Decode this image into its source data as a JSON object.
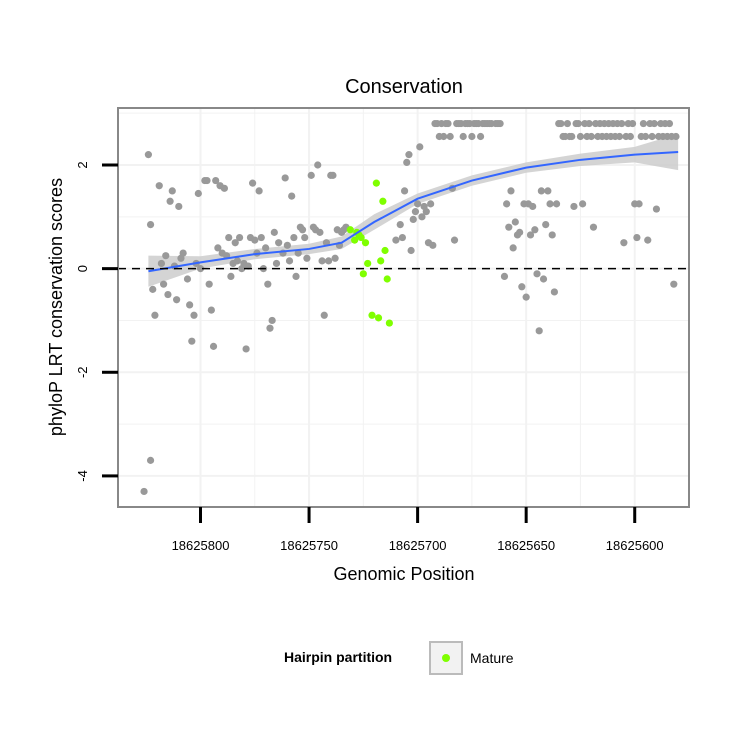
{
  "chart_data": {
    "type": "scatter",
    "title": "Conservation",
    "xlabel": "Genomic Position",
    "ylabel": "phyloP LRT conservation scores",
    "x_reversed": true,
    "xlim": [
      18625838,
      18625575
    ],
    "ylim": [
      -4.6,
      3.1
    ],
    "x_ticks": [
      18625800,
      18625750,
      18625700,
      18625650,
      18625600
    ],
    "y_ticks": [
      -4,
      -2,
      0,
      2
    ],
    "grid": true,
    "reference_line_y": 0,
    "legend": {
      "title": "Hairpin partition",
      "entries": [
        "Mature"
      ],
      "position": "bottom"
    },
    "colors": {
      "other": "#999999",
      "mature": "#7fff00",
      "smooth": "#3366ff",
      "ribbon": "#cccccc",
      "panel_border": "#888888",
      "grid": "#f2f2f2"
    },
    "series": [
      {
        "group": "other",
        "points": [
          [
            18625824,
            2.2
          ],
          [
            18625823,
            0.85
          ],
          [
            18625822,
            -0.4
          ],
          [
            18625821,
            -0.9
          ],
          [
            18625819,
            1.6
          ],
          [
            18625818,
            0.1
          ],
          [
            18625817,
            -0.3
          ],
          [
            18625816,
            0.25
          ],
          [
            18625815,
            -0.5
          ],
          [
            18625814,
            1.3
          ],
          [
            18625813,
            1.5
          ],
          [
            18625812,
            0.05
          ],
          [
            18625811,
            -0.6
          ],
          [
            18625810,
            1.2
          ],
          [
            18625809,
            0.2
          ],
          [
            18625808,
            0.3
          ],
          [
            18625806,
            -0.2
          ],
          [
            18625805,
            -0.7
          ],
          [
            18625804,
            -1.4
          ],
          [
            18625803,
            -0.9
          ],
          [
            18625802,
            0.1
          ],
          [
            18625801,
            1.45
          ],
          [
            18625800,
            0.0
          ],
          [
            18625798,
            1.7
          ],
          [
            18625797,
            1.7
          ],
          [
            18625796,
            -0.3
          ],
          [
            18625795,
            -0.8
          ],
          [
            18625794,
            -1.5
          ],
          [
            18625793,
            1.7
          ],
          [
            18625792,
            0.4
          ],
          [
            18625791,
            1.6
          ],
          [
            18625790,
            0.3
          ],
          [
            18625789,
            1.55
          ],
          [
            18625788,
            0.25
          ],
          [
            18625787,
            0.6
          ],
          [
            18625786,
            -0.15
          ],
          [
            18625785,
            0.1
          ],
          [
            18625784,
            0.5
          ],
          [
            18625783,
            0.15
          ],
          [
            18625782,
            0.6
          ],
          [
            18625781,
            0.0
          ],
          [
            18625780,
            0.1
          ],
          [
            18625779,
            -1.55
          ],
          [
            18625778,
            0.05
          ],
          [
            18625777,
            0.6
          ],
          [
            18625776,
            1.65
          ],
          [
            18625775,
            0.55
          ],
          [
            18625774,
            0.3
          ],
          [
            18625773,
            1.5
          ],
          [
            18625772,
            0.6
          ],
          [
            18625771,
            0.0
          ],
          [
            18625770,
            0.4
          ],
          [
            18625769,
            -0.3
          ],
          [
            18625768,
            -1.15
          ],
          [
            18625767,
            -1.0
          ],
          [
            18625766,
            0.7
          ],
          [
            18625765,
            0.1
          ],
          [
            18625764,
            0.5
          ],
          [
            18625762,
            0.3
          ],
          [
            18625761,
            1.75
          ],
          [
            18625760,
            0.45
          ],
          [
            18625759,
            0.15
          ],
          [
            18625758,
            1.4
          ],
          [
            18625757,
            0.6
          ],
          [
            18625756,
            -0.15
          ],
          [
            18625755,
            0.3
          ],
          [
            18625754,
            0.8
          ],
          [
            18625753,
            0.75
          ],
          [
            18625752,
            0.6
          ],
          [
            18625751,
            0.2
          ],
          [
            18625749,
            1.8
          ],
          [
            18625748,
            0.8
          ],
          [
            18625747,
            0.75
          ],
          [
            18625746,
            2.0
          ],
          [
            18625745,
            0.7
          ],
          [
            18625744,
            0.15
          ],
          [
            18625743,
            -0.9
          ],
          [
            18625742,
            0.5
          ],
          [
            18625741,
            0.15
          ],
          [
            18625740,
            1.8
          ],
          [
            18625739,
            1.8
          ],
          [
            18625738,
            0.2
          ],
          [
            18625737,
            0.75
          ],
          [
            18625736,
            0.45
          ],
          [
            18625735,
            0.7
          ],
          [
            18625734,
            0.75
          ],
          [
            18625733,
            0.8
          ],
          [
            18625710,
            0.55
          ],
          [
            18625708,
            0.85
          ],
          [
            18625707,
            0.6
          ],
          [
            18625706,
            1.5
          ],
          [
            18625705,
            2.05
          ],
          [
            18625704,
            2.2
          ],
          [
            18625703,
            0.35
          ],
          [
            18625702,
            0.95
          ],
          [
            18625701,
            1.1
          ],
          [
            18625700,
            1.25
          ],
          [
            18625699,
            2.35
          ],
          [
            18625698,
            1.0
          ],
          [
            18625697,
            1.2
          ],
          [
            18625696,
            1.1
          ],
          [
            18625695,
            0.5
          ],
          [
            18625694,
            1.25
          ],
          [
            18625693,
            0.45
          ],
          [
            18625692,
            2.8
          ],
          [
            18625691,
            2.8
          ],
          [
            18625690,
            2.55
          ],
          [
            18625689,
            2.8
          ],
          [
            18625688,
            2.55
          ],
          [
            18625687,
            2.8
          ],
          [
            18625686,
            2.8
          ],
          [
            18625685,
            2.55
          ],
          [
            18625684,
            1.55
          ],
          [
            18625683,
            0.55
          ],
          [
            18625682,
            2.8
          ],
          [
            18625681,
            2.8
          ],
          [
            18625680,
            2.8
          ],
          [
            18625679,
            2.55
          ],
          [
            18625678,
            2.8
          ],
          [
            18625677,
            2.8
          ],
          [
            18625676,
            2.8
          ],
          [
            18625675,
            2.55
          ],
          [
            18625674,
            2.8
          ],
          [
            18625673,
            2.8
          ],
          [
            18625672,
            2.8
          ],
          [
            18625671,
            2.55
          ],
          [
            18625670,
            2.8
          ],
          [
            18625669,
            2.8
          ],
          [
            18625668,
            2.8
          ],
          [
            18625667,
            2.8
          ],
          [
            18625666,
            2.8
          ],
          [
            18625664,
            2.8
          ],
          [
            18625663,
            2.8
          ],
          [
            18625662,
            2.8
          ],
          [
            18625660,
            -0.15
          ],
          [
            18625659,
            1.25
          ],
          [
            18625658,
            0.8
          ],
          [
            18625657,
            1.5
          ],
          [
            18625656,
            0.4
          ],
          [
            18625655,
            0.9
          ],
          [
            18625654,
            0.65
          ],
          [
            18625653,
            0.7
          ],
          [
            18625652,
            -0.35
          ],
          [
            18625651,
            1.25
          ],
          [
            18625650,
            -0.55
          ],
          [
            18625649,
            1.25
          ],
          [
            18625648,
            0.65
          ],
          [
            18625647,
            1.2
          ],
          [
            18625646,
            0.75
          ],
          [
            18625645,
            -0.1
          ],
          [
            18625644,
            -1.2
          ],
          [
            18625643,
            1.5
          ],
          [
            18625642,
            -0.2
          ],
          [
            18625641,
            0.85
          ],
          [
            18625640,
            1.5
          ],
          [
            18625639,
            1.25
          ],
          [
            18625638,
            0.65
          ],
          [
            18625637,
            -0.45
          ],
          [
            18625636,
            1.25
          ],
          [
            18625635,
            2.8
          ],
          [
            18625634,
            2.8
          ],
          [
            18625633,
            2.55
          ],
          [
            18625632,
            2.55
          ],
          [
            18625631,
            2.8
          ],
          [
            18625630,
            2.55
          ],
          [
            18625629,
            2.55
          ],
          [
            18625628,
            1.2
          ],
          [
            18625627,
            2.8
          ],
          [
            18625626,
            2.8
          ],
          [
            18625625,
            2.55
          ],
          [
            18625624,
            1.25
          ],
          [
            18625623,
            2.8
          ],
          [
            18625622,
            2.55
          ],
          [
            18625621,
            2.8
          ],
          [
            18625620,
            2.55
          ],
          [
            18625619,
            0.8
          ],
          [
            18625618,
            2.8
          ],
          [
            18625617,
            2.55
          ],
          [
            18625616,
            2.8
          ],
          [
            18625615,
            2.55
          ],
          [
            18625614,
            2.8
          ],
          [
            18625613,
            2.55
          ],
          [
            18625612,
            2.8
          ],
          [
            18625611,
            2.55
          ],
          [
            18625610,
            2.8
          ],
          [
            18625609,
            2.55
          ],
          [
            18625608,
            2.8
          ],
          [
            18625607,
            2.55
          ],
          [
            18625606,
            2.8
          ],
          [
            18625605,
            0.5
          ],
          [
            18625604,
            2.55
          ],
          [
            18625603,
            2.8
          ],
          [
            18625602,
            2.55
          ],
          [
            18625601,
            2.8
          ],
          [
            18625600,
            1.25
          ],
          [
            18625599,
            0.6
          ],
          [
            18625598,
            1.25
          ],
          [
            18625597,
            2.55
          ],
          [
            18625596,
            2.8
          ],
          [
            18625595,
            2.55
          ],
          [
            18625594,
            0.55
          ],
          [
            18625593,
            2.8
          ],
          [
            18625592,
            2.55
          ],
          [
            18625591,
            2.8
          ],
          [
            18625590,
            1.15
          ],
          [
            18625589,
            2.55
          ],
          [
            18625588,
            2.8
          ],
          [
            18625587,
            2.55
          ],
          [
            18625586,
            2.8
          ],
          [
            18625585,
            2.55
          ],
          [
            18625584,
            2.8
          ],
          [
            18625583,
            2.55
          ],
          [
            18625582,
            -0.3
          ],
          [
            18625581,
            2.55
          ],
          [
            18625826,
            -4.3
          ],
          [
            18625823,
            -3.7
          ]
        ]
      },
      {
        "group": "Mature",
        "points": [
          [
            18625731,
            0.75
          ],
          [
            18625729,
            0.55
          ],
          [
            18625728,
            0.7
          ],
          [
            18625727,
            0.65
          ],
          [
            18625726,
            0.6
          ],
          [
            18625725,
            -0.1
          ],
          [
            18625724,
            0.5
          ],
          [
            18625723,
            0.1
          ],
          [
            18625721,
            -0.9
          ],
          [
            18625719,
            1.65
          ],
          [
            18625718,
            -0.95
          ],
          [
            18625717,
            0.15
          ],
          [
            18625716,
            1.3
          ],
          [
            18625715,
            0.35
          ],
          [
            18625714,
            -0.2
          ],
          [
            18625713,
            -1.05
          ]
        ]
      }
    ],
    "smooth": {
      "x": [
        18625824,
        18625800,
        18625775,
        18625750,
        18625735,
        18625720,
        18625700,
        18625675,
        18625650,
        18625625,
        18625600,
        18625580
      ],
      "y": [
        -0.05,
        0.12,
        0.28,
        0.38,
        0.5,
        0.9,
        1.35,
        1.7,
        1.95,
        2.1,
        2.2,
        2.25
      ],
      "band": [
        0.3,
        0.12,
        0.1,
        0.1,
        0.12,
        0.15,
        0.1,
        0.1,
        0.1,
        0.12,
        0.15,
        0.35
      ]
    }
  }
}
